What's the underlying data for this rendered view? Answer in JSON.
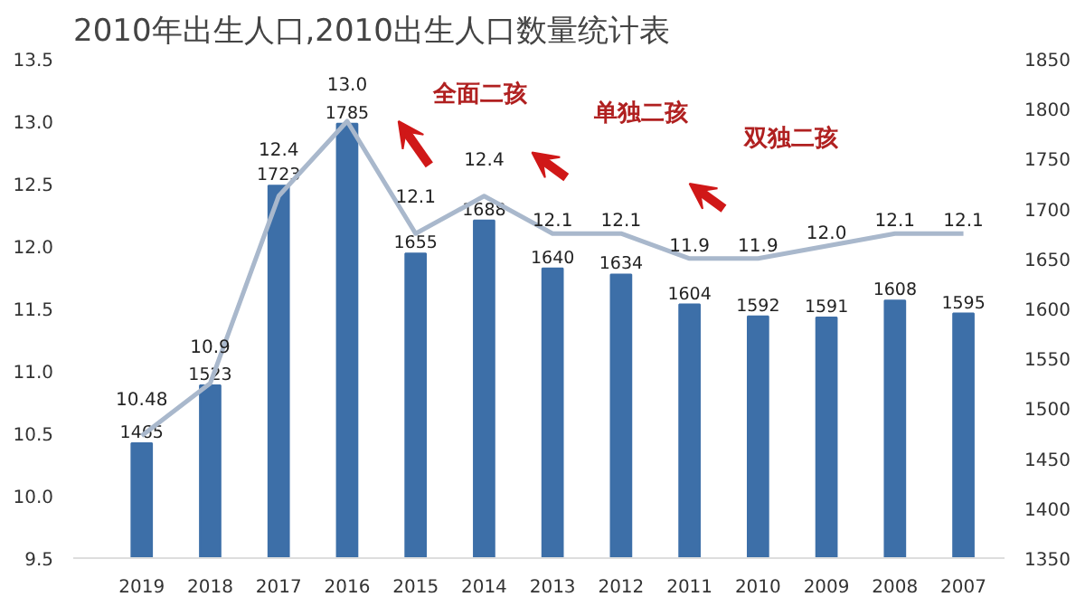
{
  "chart_data": {
    "type": "bar",
    "title": "2010年出生人口,2010出生人口数量统计表",
    "categories": [
      "2019",
      "2018",
      "2017",
      "2016",
      "2015",
      "2014",
      "2013",
      "2012",
      "2011",
      "2010",
      "2009",
      "2008",
      "2007"
    ],
    "series": [
      {
        "axis": "y2",
        "color": "#3d6fa8",
        "values": [
          1465,
          1523,
          1723,
          1785,
          1655,
          1688,
          1640,
          1634,
          1604,
          1592,
          1591,
          1608,
          1595
        ]
      },
      {
        "type": "line",
        "axis": "y",
        "color": "#a9b8cc",
        "values": [
          10.48,
          10.9,
          12.4,
          13.0,
          12.1,
          12.4,
          12.1,
          12.1,
          11.9,
          11.9,
          12.0,
          12.1,
          12.1
        ],
        "value_labels": [
          "10.48",
          "10.9",
          "12.4",
          "13.0",
          "12.1",
          "12.4",
          "12.1",
          "12.1",
          "11.9",
          "11.9",
          "12.0",
          "12.1",
          "12.1"
        ]
      }
    ],
    "ylim": [
      9.5,
      13.5
    ],
    "yticks": [
      9.5,
      {
        "value": 10,
        "label": "10.0"
      },
      10.5,
      {
        "value": 11,
        "label": "11.0"
      },
      11.5,
      {
        "value": 12,
        "label": "12.0"
      },
      12.5,
      {
        "value": 13,
        "label": "13.0"
      },
      13.5
    ],
    "y2lim": [
      1350,
      1850
    ],
    "y2ticks": [
      1350,
      1400,
      1450,
      1500,
      1550,
      1600,
      1650,
      1700,
      1750,
      1800,
      1850
    ],
    "data_labels": true,
    "grid": false,
    "marker": "none",
    "line_style": "solid",
    "annotations": [
      "全面二孩",
      "单独二孩",
      "双独二孩"
    ]
  }
}
